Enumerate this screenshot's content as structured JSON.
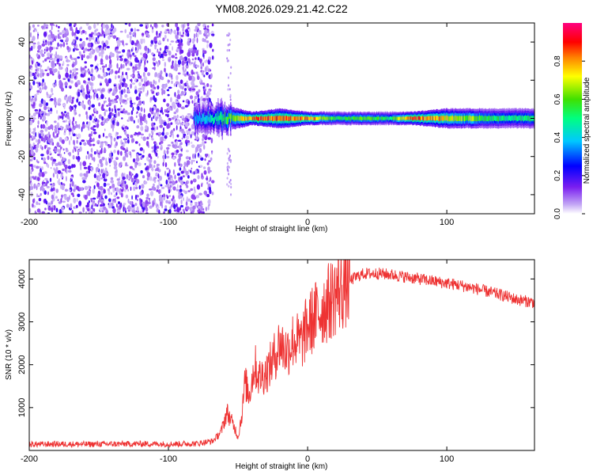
{
  "title": "YM08.2026.029.21.42.C22",
  "chart_data": [
    {
      "type": "heatmap",
      "title": "YM08.2026.029.21.42.C22",
      "xlabel": "Height of straight line (km)",
      "ylabel": "Frequency (Hz)",
      "xlim": [
        -200,
        163
      ],
      "ylim": [
        -50,
        50
      ],
      "xticks": [
        "-200",
        "-100",
        "0",
        "100"
      ],
      "xtick_values": [
        -200,
        -100,
        0,
        100
      ],
      "yticks": [
        "-40",
        "-20",
        "0",
        "20",
        "40"
      ],
      "ytick_values": [
        -40,
        -20,
        0,
        20,
        40
      ],
      "colorbar": {
        "label": "Normalized spectral amplitude",
        "range": [
          0,
          1
        ],
        "ticks": [
          "0.0",
          "0.2",
          "0.4",
          "0.6",
          "0.8"
        ],
        "tick_values": [
          0.0,
          0.2,
          0.4,
          0.6,
          0.8
        ],
        "colors": [
          "#ffffff",
          "#c2a5f5",
          "#7a1ef0",
          "#0000ff",
          "#00c8ff",
          "#00ff80",
          "#40e000",
          "#ffff00",
          "#ff8000",
          "#ff0000",
          "#ff0080"
        ]
      },
      "noise_region_x": [
        -200,
        -72
      ],
      "noise_amplitude": 0.15,
      "signal_band": [
        {
          "x": -80,
          "f_half_width": 4,
          "amplitude": 0.35
        },
        {
          "x": -60,
          "f_half_width": 4,
          "amplitude": 0.55
        },
        {
          "x": -40,
          "f_half_width": 2,
          "amplitude": 0.85
        },
        {
          "x": -20,
          "f_half_width": 3,
          "amplitude": 0.85
        },
        {
          "x": 0,
          "f_half_width": 2,
          "amplitude": 0.85
        },
        {
          "x": 20,
          "f_half_width": 2,
          "amplitude": 0.55
        },
        {
          "x": 40,
          "f_half_width": 2,
          "amplitude": 0.6
        },
        {
          "x": 60,
          "f_half_width": 2,
          "amplitude": 0.55
        },
        {
          "x": 75,
          "f_half_width": 2,
          "amplitude": 0.9
        },
        {
          "x": 100,
          "f_half_width": 3,
          "amplitude": 0.75
        },
        {
          "x": 130,
          "f_half_width": 3,
          "amplitude": 0.55
        },
        {
          "x": 163,
          "f_half_width": 3,
          "amplitude": 0.5
        }
      ]
    },
    {
      "type": "line",
      "xlabel": "Height of straight line (km)",
      "ylabel": "SNR (10 * v/v)",
      "xlim": [
        -200,
        163
      ],
      "ylim": [
        0,
        4450
      ],
      "xticks": [
        "-200",
        "-100",
        "0",
        "100"
      ],
      "xtick_values": [
        -200,
        -100,
        0,
        100
      ],
      "yticks": [
        "1000",
        "2000",
        "3000",
        "4000"
      ],
      "ytick_values": [
        1000,
        2000,
        3000,
        4000
      ],
      "color": "#ee3333",
      "series": [
        {
          "name": "SNR",
          "x": [
            -200,
            -180,
            -160,
            -140,
            -120,
            -100,
            -80,
            -68,
            -62,
            -58,
            -55,
            -52,
            -50,
            -47,
            -45,
            -42,
            -38,
            -35,
            -30,
            -25,
            -20,
            -15,
            -10,
            -5,
            0,
            5,
            10,
            15,
            20,
            25,
            30,
            35,
            40,
            50,
            60,
            70,
            80,
            90,
            100,
            110,
            120,
            130,
            140,
            150,
            163
          ],
          "y": [
            140,
            150,
            145,
            150,
            155,
            150,
            160,
            220,
            450,
            900,
            700,
            500,
            300,
            900,
            1600,
            1300,
            2000,
            1700,
            1800,
            2100,
            2500,
            2300,
            2600,
            2500,
            2900,
            3100,
            3300,
            3450,
            3650,
            3800,
            3950,
            4050,
            4120,
            4130,
            4100,
            4050,
            4000,
            3950,
            3900,
            3850,
            3780,
            3700,
            3620,
            3520,
            3450
          ]
        }
      ]
    }
  ]
}
